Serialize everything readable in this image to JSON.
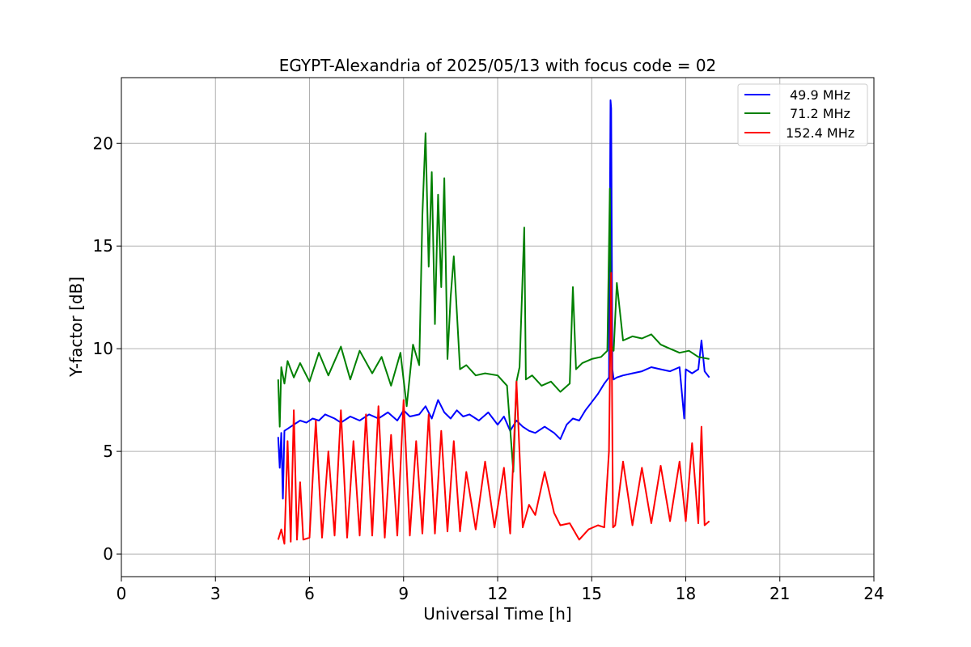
{
  "chart_data": {
    "type": "line",
    "title": "EGYPT-Alexandria of 2025/05/13 with focus code = 02",
    "xlabel": "Universal Time [h]",
    "ylabel": "Y-factor [dB]",
    "xlim": [
      0,
      24
    ],
    "ylim": [
      -1.1,
      23.2
    ],
    "xticks": [
      0,
      3,
      6,
      9,
      12,
      15,
      18,
      21,
      24
    ],
    "yticks": [
      0,
      5,
      10,
      15,
      20
    ],
    "grid": true,
    "legend_position": "top-right",
    "series": [
      {
        "name": "49.9 MHz",
        "color": "#0000ff",
        "x": [
          5.0,
          5.05,
          5.1,
          5.15,
          5.2,
          5.3,
          5.5,
          5.7,
          5.9,
          6.1,
          6.3,
          6.5,
          6.8,
          7.0,
          7.3,
          7.6,
          7.9,
          8.2,
          8.5,
          8.8,
          9.0,
          9.2,
          9.5,
          9.7,
          9.9,
          10.1,
          10.3,
          10.5,
          10.7,
          10.9,
          11.1,
          11.4,
          11.7,
          12.0,
          12.2,
          12.4,
          12.6,
          12.8,
          13.0,
          13.2,
          13.5,
          13.8,
          14.0,
          14.2,
          14.4,
          14.6,
          14.8,
          15.0,
          15.2,
          15.4,
          15.55,
          15.6,
          15.62,
          15.66,
          15.7,
          15.8,
          16.0,
          16.3,
          16.6,
          16.9,
          17.2,
          17.5,
          17.8,
          17.95,
          18.0,
          18.2,
          18.4,
          18.5,
          18.6,
          18.75
        ],
        "y": [
          5.7,
          4.2,
          5.9,
          2.7,
          6.0,
          6.1,
          6.3,
          6.5,
          6.4,
          6.6,
          6.5,
          6.8,
          6.6,
          6.4,
          6.7,
          6.5,
          6.8,
          6.6,
          6.9,
          6.5,
          7.0,
          6.7,
          6.8,
          7.2,
          6.6,
          7.5,
          6.9,
          6.6,
          7.0,
          6.7,
          6.8,
          6.5,
          6.9,
          6.3,
          6.7,
          6.0,
          6.5,
          6.2,
          6.0,
          5.9,
          6.2,
          5.9,
          5.6,
          6.3,
          6.6,
          6.5,
          7.0,
          7.4,
          7.8,
          8.3,
          8.6,
          22.1,
          21.7,
          9.0,
          8.5,
          8.6,
          8.7,
          8.8,
          8.9,
          9.1,
          9.0,
          8.9,
          9.1,
          6.6,
          9.0,
          8.8,
          9.0,
          10.4,
          8.9,
          8.6
        ]
      },
      {
        "name": "71.2 MHz",
        "color": "#008000",
        "x": [
          5.0,
          5.05,
          5.1,
          5.2,
          5.3,
          5.5,
          5.7,
          6.0,
          6.3,
          6.6,
          7.0,
          7.3,
          7.6,
          8.0,
          8.3,
          8.6,
          8.9,
          9.1,
          9.3,
          9.5,
          9.6,
          9.7,
          9.8,
          9.9,
          10.0,
          10.1,
          10.2,
          10.3,
          10.4,
          10.5,
          10.6,
          10.8,
          11.0,
          11.3,
          11.6,
          12.0,
          12.3,
          12.5,
          12.6,
          12.7,
          12.85,
          12.9,
          13.1,
          13.4,
          13.7,
          14.0,
          14.3,
          14.4,
          14.5,
          14.7,
          15.0,
          15.3,
          15.5,
          15.58,
          15.62,
          15.7,
          15.8,
          16.0,
          16.3,
          16.6,
          16.9,
          17.2,
          17.5,
          17.8,
          18.1,
          18.4,
          18.75
        ],
        "y": [
          8.5,
          6.2,
          9.1,
          8.3,
          9.4,
          8.6,
          9.3,
          8.4,
          9.8,
          8.7,
          10.1,
          8.5,
          9.9,
          8.8,
          9.6,
          8.2,
          9.8,
          7.2,
          10.2,
          9.2,
          16.5,
          20.5,
          14.0,
          18.6,
          11.2,
          17.5,
          13.0,
          18.3,
          9.5,
          12.5,
          14.5,
          9.0,
          9.2,
          8.7,
          8.8,
          8.7,
          8.2,
          4.0,
          8.4,
          9.1,
          15.9,
          8.5,
          8.7,
          8.2,
          8.4,
          7.9,
          8.3,
          13.0,
          9.0,
          9.3,
          9.5,
          9.6,
          9.9,
          17.8,
          10.2,
          9.9,
          13.2,
          10.4,
          10.6,
          10.5,
          10.7,
          10.2,
          10.0,
          9.8,
          9.9,
          9.6,
          9.5
        ]
      },
      {
        "name": "152.4 MHz",
        "color": "#ff0000",
        "x": [
          5.0,
          5.1,
          5.2,
          5.3,
          5.4,
          5.5,
          5.6,
          5.7,
          5.8,
          6.0,
          6.2,
          6.4,
          6.6,
          6.8,
          7.0,
          7.2,
          7.4,
          7.6,
          7.8,
          8.0,
          8.2,
          8.4,
          8.6,
          8.8,
          9.0,
          9.2,
          9.4,
          9.6,
          9.8,
          10.0,
          10.2,
          10.4,
          10.6,
          10.8,
          11.0,
          11.3,
          11.6,
          11.9,
          12.2,
          12.4,
          12.6,
          12.8,
          13.0,
          13.2,
          13.5,
          13.8,
          14.0,
          14.3,
          14.6,
          14.9,
          15.2,
          15.4,
          15.55,
          15.62,
          15.68,
          15.75,
          16.0,
          16.3,
          16.6,
          16.9,
          17.2,
          17.5,
          17.8,
          18.0,
          18.2,
          18.4,
          18.5,
          18.6,
          18.75
        ],
        "y": [
          0.7,
          1.2,
          0.5,
          5.5,
          0.6,
          7.0,
          0.7,
          3.5,
          0.7,
          0.8,
          6.5,
          0.8,
          5.0,
          0.9,
          7.0,
          0.8,
          5.5,
          0.9,
          6.8,
          0.9,
          7.2,
          0.8,
          5.8,
          0.9,
          7.5,
          0.9,
          5.5,
          1.0,
          6.8,
          1.0,
          6.0,
          1.1,
          5.5,
          1.1,
          4.0,
          1.2,
          4.5,
          1.3,
          4.2,
          1.0,
          8.4,
          1.3,
          2.4,
          1.9,
          4.0,
          2.0,
          1.4,
          1.5,
          0.7,
          1.2,
          1.4,
          1.3,
          5.0,
          13.7,
          1.3,
          1.4,
          4.5,
          1.4,
          4.2,
          1.5,
          4.3,
          1.6,
          4.5,
          1.6,
          5.4,
          1.5,
          6.2,
          1.4,
          1.6
        ]
      }
    ]
  }
}
